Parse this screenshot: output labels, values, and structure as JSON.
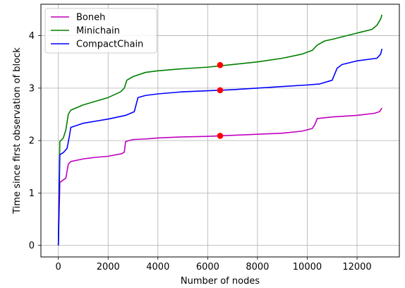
{
  "chart_data": {
    "type": "line",
    "xlabel": "Number of nodes",
    "ylabel": "Time since first observation of block",
    "xlim": [
      -700,
      13700
    ],
    "ylim": [
      -0.22,
      4.6
    ],
    "xticks": [
      0,
      2000,
      4000,
      6000,
      8000,
      10000,
      12000
    ],
    "xtick_labels": [
      "0",
      "2000",
      "4000",
      "6000",
      "8000",
      "10000",
      "12000"
    ],
    "yticks": [
      0,
      1,
      2,
      3,
      4
    ],
    "ytick_labels": [
      "0",
      "1",
      "2",
      "3",
      "4"
    ],
    "grid": true,
    "legend_position": "top-left",
    "series": [
      {
        "name": "Boneh",
        "color": "#bf00bf",
        "points": [
          [
            0,
            0
          ],
          [
            60,
            1.2
          ],
          [
            200,
            1.25
          ],
          [
            300,
            1.28
          ],
          [
            400,
            1.55
          ],
          [
            500,
            1.6
          ],
          [
            1000,
            1.65
          ],
          [
            1500,
            1.68
          ],
          [
            2000,
            1.7
          ],
          [
            2550,
            1.75
          ],
          [
            2650,
            1.78
          ],
          [
            2700,
            1.98
          ],
          [
            3000,
            2.02
          ],
          [
            3500,
            2.03
          ],
          [
            4000,
            2.05
          ],
          [
            5000,
            2.07
          ],
          [
            6000,
            2.08
          ],
          [
            7000,
            2.1
          ],
          [
            8000,
            2.12
          ],
          [
            9000,
            2.14
          ],
          [
            9800,
            2.18
          ],
          [
            10200,
            2.23
          ],
          [
            10300,
            2.3
          ],
          [
            10400,
            2.42
          ],
          [
            10600,
            2.43
          ],
          [
            11000,
            2.45
          ],
          [
            12000,
            2.48
          ],
          [
            12700,
            2.52
          ],
          [
            12900,
            2.55
          ],
          [
            13000,
            2.62
          ]
        ]
      },
      {
        "name": "Minichain",
        "color": "#008000",
        "points": [
          [
            0,
            0
          ],
          [
            60,
            1.98
          ],
          [
            200,
            2.05
          ],
          [
            300,
            2.2
          ],
          [
            400,
            2.5
          ],
          [
            500,
            2.58
          ],
          [
            1000,
            2.68
          ],
          [
            1500,
            2.75
          ],
          [
            2000,
            2.82
          ],
          [
            2500,
            2.93
          ],
          [
            2650,
            3.0
          ],
          [
            2750,
            3.15
          ],
          [
            3000,
            3.22
          ],
          [
            3500,
            3.3
          ],
          [
            4000,
            3.33
          ],
          [
            5000,
            3.37
          ],
          [
            6000,
            3.4
          ],
          [
            7000,
            3.45
          ],
          [
            8000,
            3.5
          ],
          [
            9000,
            3.57
          ],
          [
            9800,
            3.65
          ],
          [
            10200,
            3.72
          ],
          [
            10400,
            3.82
          ],
          [
            10700,
            3.9
          ],
          [
            11000,
            3.93
          ],
          [
            12000,
            4.05
          ],
          [
            12600,
            4.12
          ],
          [
            12800,
            4.2
          ],
          [
            12950,
            4.32
          ],
          [
            13000,
            4.4
          ]
        ]
      },
      {
        "name": "CompactChain",
        "color": "#0000ff",
        "points": [
          [
            0,
            0
          ],
          [
            60,
            1.73
          ],
          [
            200,
            1.77
          ],
          [
            350,
            1.85
          ],
          [
            450,
            2.1
          ],
          [
            500,
            2.25
          ],
          [
            1000,
            2.33
          ],
          [
            1500,
            2.37
          ],
          [
            2000,
            2.41
          ],
          [
            2700,
            2.48
          ],
          [
            3050,
            2.55
          ],
          [
            3200,
            2.82
          ],
          [
            3500,
            2.86
          ],
          [
            4000,
            2.89
          ],
          [
            5000,
            2.93
          ],
          [
            6000,
            2.95
          ],
          [
            7000,
            2.97
          ],
          [
            8000,
            3.0
          ],
          [
            9000,
            3.03
          ],
          [
            10000,
            3.06
          ],
          [
            10500,
            3.08
          ],
          [
            11000,
            3.15
          ],
          [
            11200,
            3.38
          ],
          [
            11400,
            3.45
          ],
          [
            12000,
            3.52
          ],
          [
            12800,
            3.57
          ],
          [
            12950,
            3.65
          ],
          [
            13000,
            3.75
          ]
        ]
      }
    ],
    "markers": [
      {
        "x": 6500,
        "y": 3.44,
        "color": "#ff0000"
      },
      {
        "x": 6500,
        "y": 2.96,
        "color": "#ff0000"
      },
      {
        "x": 6500,
        "y": 2.09,
        "color": "#ff0000"
      }
    ]
  }
}
